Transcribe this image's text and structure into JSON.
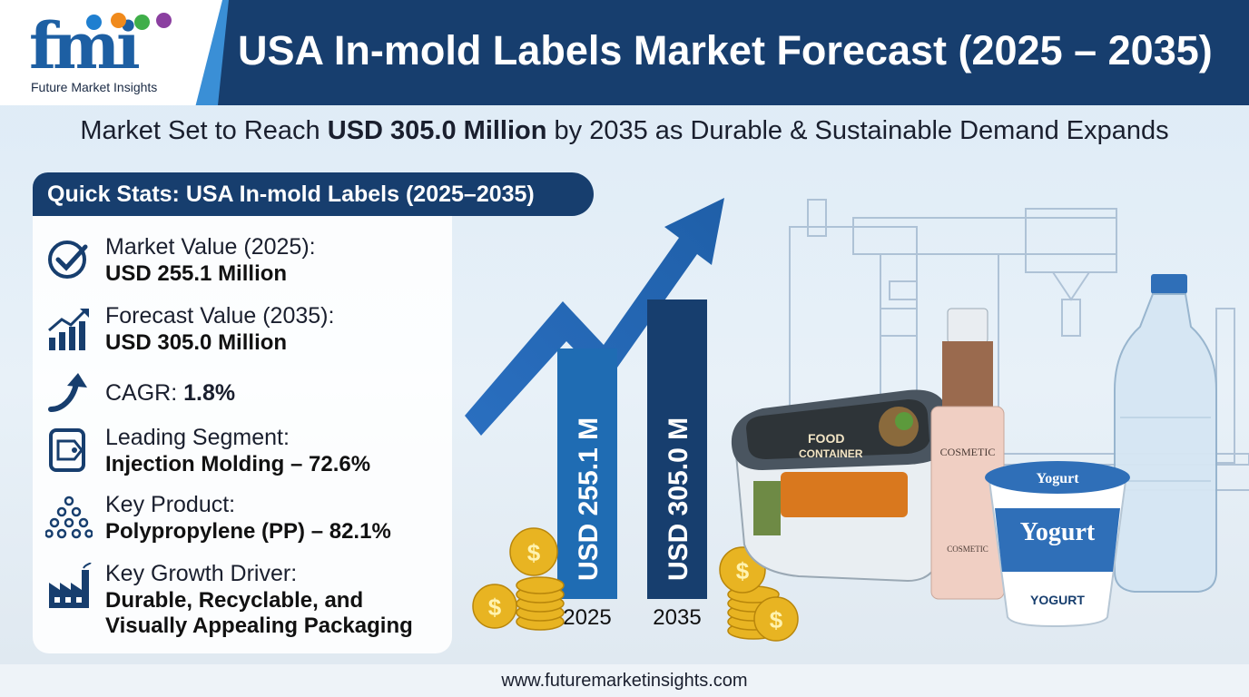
{
  "brand": {
    "logo_text": "fmi",
    "name": "Future Market Insights",
    "dot_colors": [
      "#1f7fd0",
      "#f08a1c",
      "#3fae49",
      "#8b3fa0"
    ]
  },
  "header": {
    "title": "USA In-mold Labels Market Forecast (2025 – 2035)"
  },
  "subtitle": {
    "prefix": "Market Set to Reach ",
    "highlight": "USD 305.0 Million",
    "suffix": " by 2035 as Durable & Sustainable Demand Expands"
  },
  "stats": {
    "heading": "Quick Stats: USA In-mold Labels (2025–2035)",
    "items": [
      {
        "icon": "checkmark-circle-icon",
        "label": "Market Value (2025):",
        "value": "USD 255.1 Million"
      },
      {
        "icon": "growth-chart-icon",
        "label": "Forecast Value (2035):",
        "value": "USD 305.0 Million"
      },
      {
        "icon": "upward-arrow-icon",
        "label": "CAGR: ",
        "value": "1.8%"
      },
      {
        "icon": "label-tag-icon",
        "label": "Leading Segment:",
        "value": "Injection Molding – 72.6%"
      },
      {
        "icon": "molecules-icon",
        "label": "Key Product:",
        "value": "Polypropylene (PP) – 82.1%"
      },
      {
        "icon": "factory-icon",
        "label": "Key Growth Driver:",
        "value": "Durable, Recyclable, and",
        "value2": "Visually Appealing Packaging"
      }
    ]
  },
  "chart_data": {
    "type": "bar",
    "categories": [
      "2025",
      "2035"
    ],
    "values": [
      255.1,
      305.0
    ],
    "bar_labels": [
      "USD 255.1 M",
      "USD 305.0 M"
    ],
    "unit": "USD Million",
    "colors": [
      "#1f6cb3",
      "#173e6e"
    ]
  },
  "products": {
    "food_label_1": "FOOD",
    "food_label_2": "CONTAINER",
    "cosmetic_label": "COSMETIC",
    "cosmetic_label_2": "COSMETIC",
    "yogurt_top": "Yogurt",
    "yogurt_main": "Yogurt",
    "yogurt_bottom": "YOGURT"
  },
  "footer": {
    "url": "www.futuremarketinsights.com"
  }
}
